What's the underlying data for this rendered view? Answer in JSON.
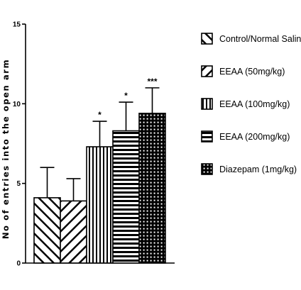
{
  "chart_data": {
    "type": "bar",
    "ylabel": "No of entries into the open arm",
    "ylim": [
      0,
      15
    ],
    "yticks": [
      "0",
      "5",
      "10",
      "15"
    ],
    "grid": false,
    "legend_position": "right",
    "series": [
      {
        "name": "Control/Normal Saline",
        "value": 4.1,
        "error": 1.9,
        "significance": "",
        "pattern": "diagonal-back"
      },
      {
        "name": "EEAA (50mg/kg)",
        "value": 3.9,
        "error": 1.4,
        "significance": "",
        "pattern": "diagonal-forward"
      },
      {
        "name": "EEAA (100mg/kg)",
        "value": 7.3,
        "error": 1.6,
        "significance": "*",
        "pattern": "vertical"
      },
      {
        "name": "EEAA (200mg/kg)",
        "value": 8.3,
        "error": 1.8,
        "significance": "*",
        "pattern": "horizontal"
      },
      {
        "name": "Diazepam (1mg/kg)",
        "value": 9.4,
        "error": 1.6,
        "significance": "***",
        "pattern": "grid"
      }
    ]
  }
}
